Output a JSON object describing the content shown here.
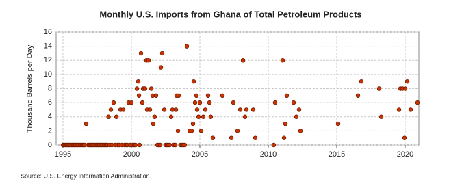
{
  "chart_data": {
    "type": "scatter",
    "title": "Monthly U.S. Imports from Ghana of Total Petroleum Products",
    "y_label": "Thousand Barrels per Day",
    "source": "Source: U.S. Energy Information Administration",
    "xlim": [
      1994.5,
      2021
    ],
    "ylim": [
      0,
      16
    ],
    "xticks": [
      1995,
      2000,
      2005,
      2010,
      2015,
      2020
    ],
    "yticks": [
      0,
      2,
      4,
      6,
      8,
      10,
      12,
      14,
      16
    ],
    "grid": true,
    "series": [
      {
        "name": "Ghana",
        "color": "#cc3300",
        "x": [
          1995.0,
          1995.08,
          1995.17,
          1995.25,
          1995.33,
          1995.42,
          1995.5,
          1995.58,
          1995.67,
          1995.75,
          1995.83,
          1995.92,
          1996.0,
          1996.08,
          1996.17,
          1996.25,
          1996.33,
          1996.42,
          1996.5,
          1996.58,
          1996.7,
          1996.83,
          1996.92,
          1997.0,
          1997.08,
          1997.17,
          1997.25,
          1997.33,
          1997.42,
          1997.5,
          1997.58,
          1997.67,
          1997.75,
          1997.83,
          1997.92,
          1998.0,
          1998.08,
          1998.17,
          1998.25,
          1998.33,
          1998.5,
          1998.7,
          1998.42,
          1998.58,
          1998.83,
          1998.9,
          1999.0,
          1999.1,
          1999.2,
          1999.3,
          1999.4,
          1999.5,
          1999.6,
          1999.7,
          1999.8,
          1999.9,
          2000.0,
          2000.1,
          2000.2,
          2000.3,
          2000.4,
          2000.5,
          2000.55,
          2000.6,
          2000.7,
          2000.8,
          2000.85,
          2001.0,
          2001.1,
          2001.15,
          2001.25,
          2001.35,
          2001.45,
          2001.55,
          2001.6,
          2001.7,
          2001.8,
          2001.9,
          2002.0,
          2002.1,
          2002.15,
          2002.25,
          2002.4,
          2002.5,
          2002.6,
          2002.7,
          2002.8,
          2002.9,
          2003.0,
          2003.1,
          2003.2,
          2003.25,
          2003.3,
          2003.4,
          2003.45,
          2003.6,
          2003.7,
          2003.8,
          2003.9,
          2004.05,
          2004.25,
          2004.4,
          2004.5,
          2004.55,
          2004.65,
          2004.75,
          2004.8,
          2004.9,
          2005.0,
          2005.1,
          2005.25,
          2005.4,
          2005.6,
          2005.7,
          2005.8,
          2005.95,
          2006.65,
          2007.3,
          2007.45,
          2007.75,
          2007.95,
          2008.15,
          2008.3,
          2008.4,
          2008.9,
          2009.05,
          2010.4,
          2010.5,
          2011.05,
          2011.15,
          2011.25,
          2011.35,
          2011.85,
          2012.05,
          2012.25,
          2012.35,
          2015.1,
          2016.55,
          2016.8,
          2018.1,
          2018.25,
          2019.55,
          2019.65,
          2019.8,
          2019.95,
          2020.0,
          2020.15,
          2020.4,
          2020.9
        ],
        "values": [
          0,
          0,
          0,
          0,
          0,
          0,
          0,
          0,
          0,
          0,
          0,
          0,
          0,
          0,
          0,
          0,
          0,
          0,
          0,
          0,
          3,
          0,
          0,
          0,
          0,
          0,
          0,
          0,
          0,
          0,
          0,
          0,
          0,
          0,
          0,
          0,
          0,
          0,
          0,
          4,
          5,
          6,
          0,
          0,
          0,
          4,
          0,
          0,
          5,
          0,
          5,
          0,
          0,
          0,
          6,
          0,
          6,
          0,
          0,
          0,
          8,
          9,
          7,
          0,
          13,
          6,
          8,
          8,
          12,
          5,
          12,
          5,
          8,
          7,
          3,
          4,
          7,
          0,
          0,
          0,
          11,
          13,
          5,
          0,
          0,
          0,
          0,
          4,
          5,
          0,
          0,
          5,
          7,
          2,
          7,
          0,
          0,
          0,
          0,
          14,
          2,
          2,
          3,
          9,
          6,
          7,
          5,
          4,
          6,
          2,
          4,
          5,
          7,
          6,
          4,
          1,
          7,
          1,
          6,
          2,
          5,
          12,
          4,
          5,
          5,
          1,
          0,
          6,
          12,
          1,
          3,
          7,
          6,
          4,
          5,
          2,
          3,
          7,
          9,
          8,
          4,
          5,
          8,
          8,
          1,
          8,
          9,
          5,
          6
        ]
      }
    ]
  }
}
